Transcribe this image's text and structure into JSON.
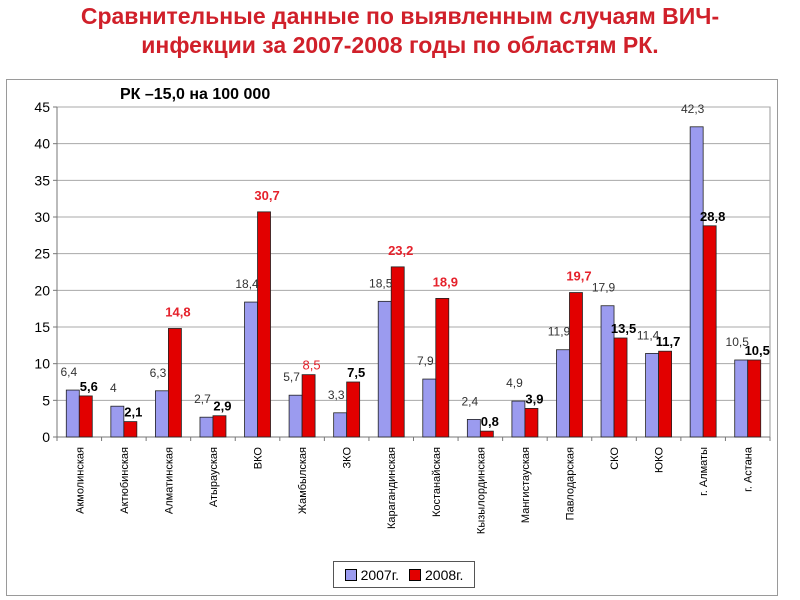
{
  "title_line1": "Сравнительные данные по выявленным случаям ВИЧ-",
  "title_line2": "инфекции за 2007-2008 годы по областям РК.",
  "note": "РК –15,0 на 100 000",
  "colors": {
    "s2007": "#9b9bef",
    "s2008": "#e20000",
    "label2008_red": "#e5212b",
    "title": "#d0202a"
  },
  "chart_data": {
    "type": "bar",
    "title": "",
    "xlabel": "",
    "ylabel": "",
    "ylim": [
      0,
      45
    ],
    "yticks": [
      0,
      5,
      10,
      15,
      20,
      25,
      30,
      35,
      40,
      45
    ],
    "grid": true,
    "legend_position": "bottom",
    "categories": [
      "Акмолинская",
      "Актюбинская",
      "Алматинская",
      "Атырауская",
      "ВКО",
      "Жамбылская",
      "ЗКО",
      "Карагандинская",
      "Костанайская",
      "Кызылординская",
      "Мангистауская",
      "Павлодарская",
      "СКО",
      "ЮКО",
      "г. Алматы",
      "г. Астана"
    ],
    "series": [
      {
        "name": "2007г.",
        "values": [
          6.4,
          4.2,
          6.3,
          2.7,
          18.4,
          5.7,
          3.3,
          18.5,
          7.9,
          2.4,
          4.9,
          11.9,
          17.9,
          11.4,
          42.3,
          10.5
        ],
        "labels": [
          "6,4",
          "4",
          "6,3",
          "2,7",
          "18,4",
          "5,7",
          "3,3",
          "18,5",
          "7,9",
          "2,4",
          "4,9",
          "11,9",
          "17,9",
          "11,4",
          "42,3",
          "10,5"
        ]
      },
      {
        "name": "2008г.",
        "values": [
          5.6,
          2.1,
          14.8,
          2.9,
          30.7,
          8.5,
          7.5,
          23.2,
          18.9,
          0.8,
          3.9,
          19.7,
          13.5,
          11.7,
          28.8,
          10.5
        ],
        "labels": [
          "5,6",
          "2,1",
          "14,8",
          "2,9",
          "30,7",
          "8,5",
          "7,5",
          "23,2",
          "18,9",
          "0,8",
          "3,9",
          "19,7",
          "13,5",
          "11,7",
          "28,8",
          "10,5"
        ],
        "label_styles": [
          "bold",
          "bold",
          "red-bold",
          "bold",
          "red-bold",
          "red",
          "bold",
          "red-bold",
          "red-bold",
          "bold",
          "bold",
          "red-bold",
          "bold",
          "bold",
          "bold",
          "bold"
        ]
      }
    ]
  }
}
